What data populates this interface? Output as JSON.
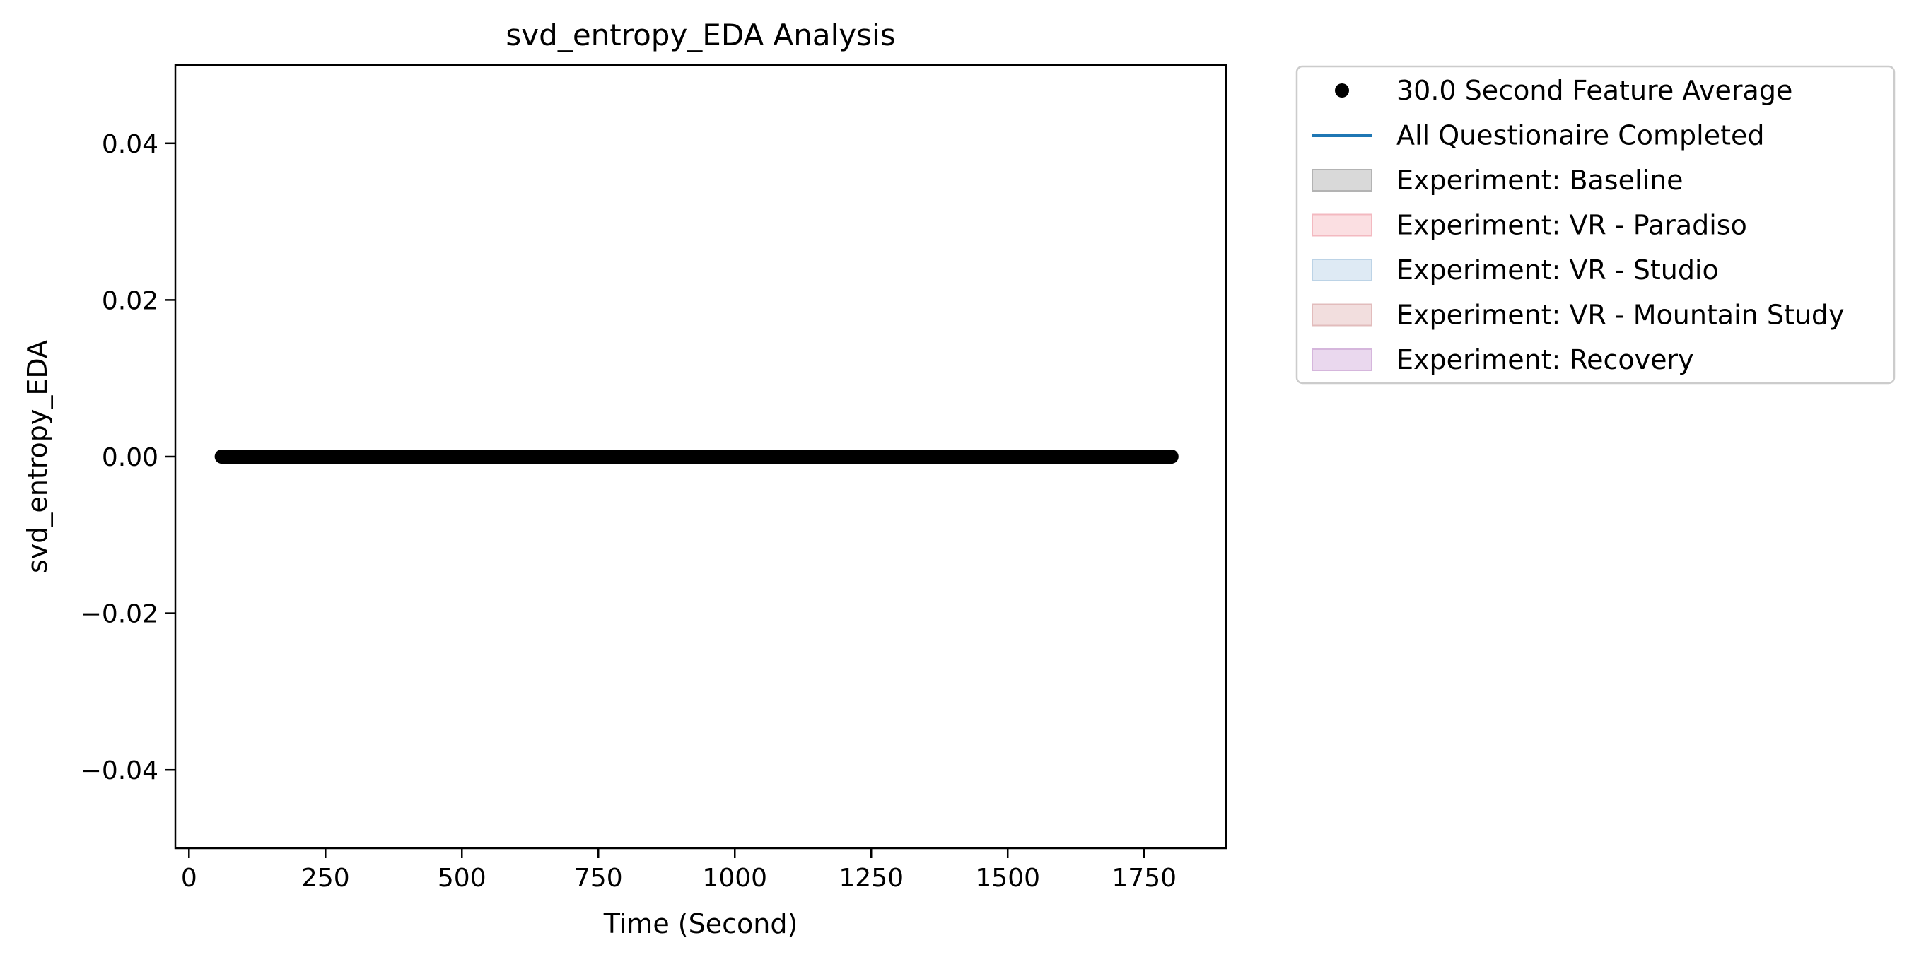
{
  "chart_data": {
    "type": "scatter",
    "title": "svd_entropy_EDA Analysis",
    "xlabel": "Time (Second)",
    "ylabel": "svd_entropy_EDA",
    "xlim": [
      -25,
      1900
    ],
    "ylim": [
      -0.05,
      0.05
    ],
    "xticks": [
      0,
      250,
      500,
      750,
      1000,
      1250,
      1500,
      1750
    ],
    "xtick_labels": [
      "0",
      "250",
      "500",
      "750",
      "1000",
      "1250",
      "1500",
      "1750"
    ],
    "yticks": [
      0.04,
      0.02,
      0.0,
      -0.02,
      -0.04
    ],
    "ytick_labels": [
      "0.04",
      "0.02",
      "0.00",
      "−0.02",
      "−0.04"
    ],
    "grid": false,
    "legend_position": "outside-top-right",
    "series": [
      {
        "name": "30.0 Second Feature Average",
        "kind": "scatter",
        "color": "#000000",
        "x_start": 60,
        "x_end": 1800,
        "x_step": 1,
        "y": 0.0
      }
    ],
    "legend": [
      {
        "label": "30.0 Second Feature Average",
        "kind": "dot",
        "color": "#000000"
      },
      {
        "label": "All Questionaire Completed",
        "kind": "line",
        "color": "#1f77b4"
      },
      {
        "label": "Experiment: Baseline",
        "kind": "patch",
        "color": "#d9d9d9",
        "edge": "#b3b3b3"
      },
      {
        "label": "Experiment: VR - Paradiso",
        "kind": "patch",
        "color": "#fbdfe2",
        "edge": "#f3b9c0"
      },
      {
        "label": "Experiment: VR - Studio",
        "kind": "patch",
        "color": "#deeaf4",
        "edge": "#bcd3e6"
      },
      {
        "label": "Experiment: VR - Mountain Study",
        "kind": "patch",
        "color": "#f2dede",
        "edge": "#e2bcbc"
      },
      {
        "label": "Experiment: Recovery",
        "kind": "patch",
        "color": "#ead8ee",
        "edge": "#d5b6dc"
      }
    ]
  }
}
